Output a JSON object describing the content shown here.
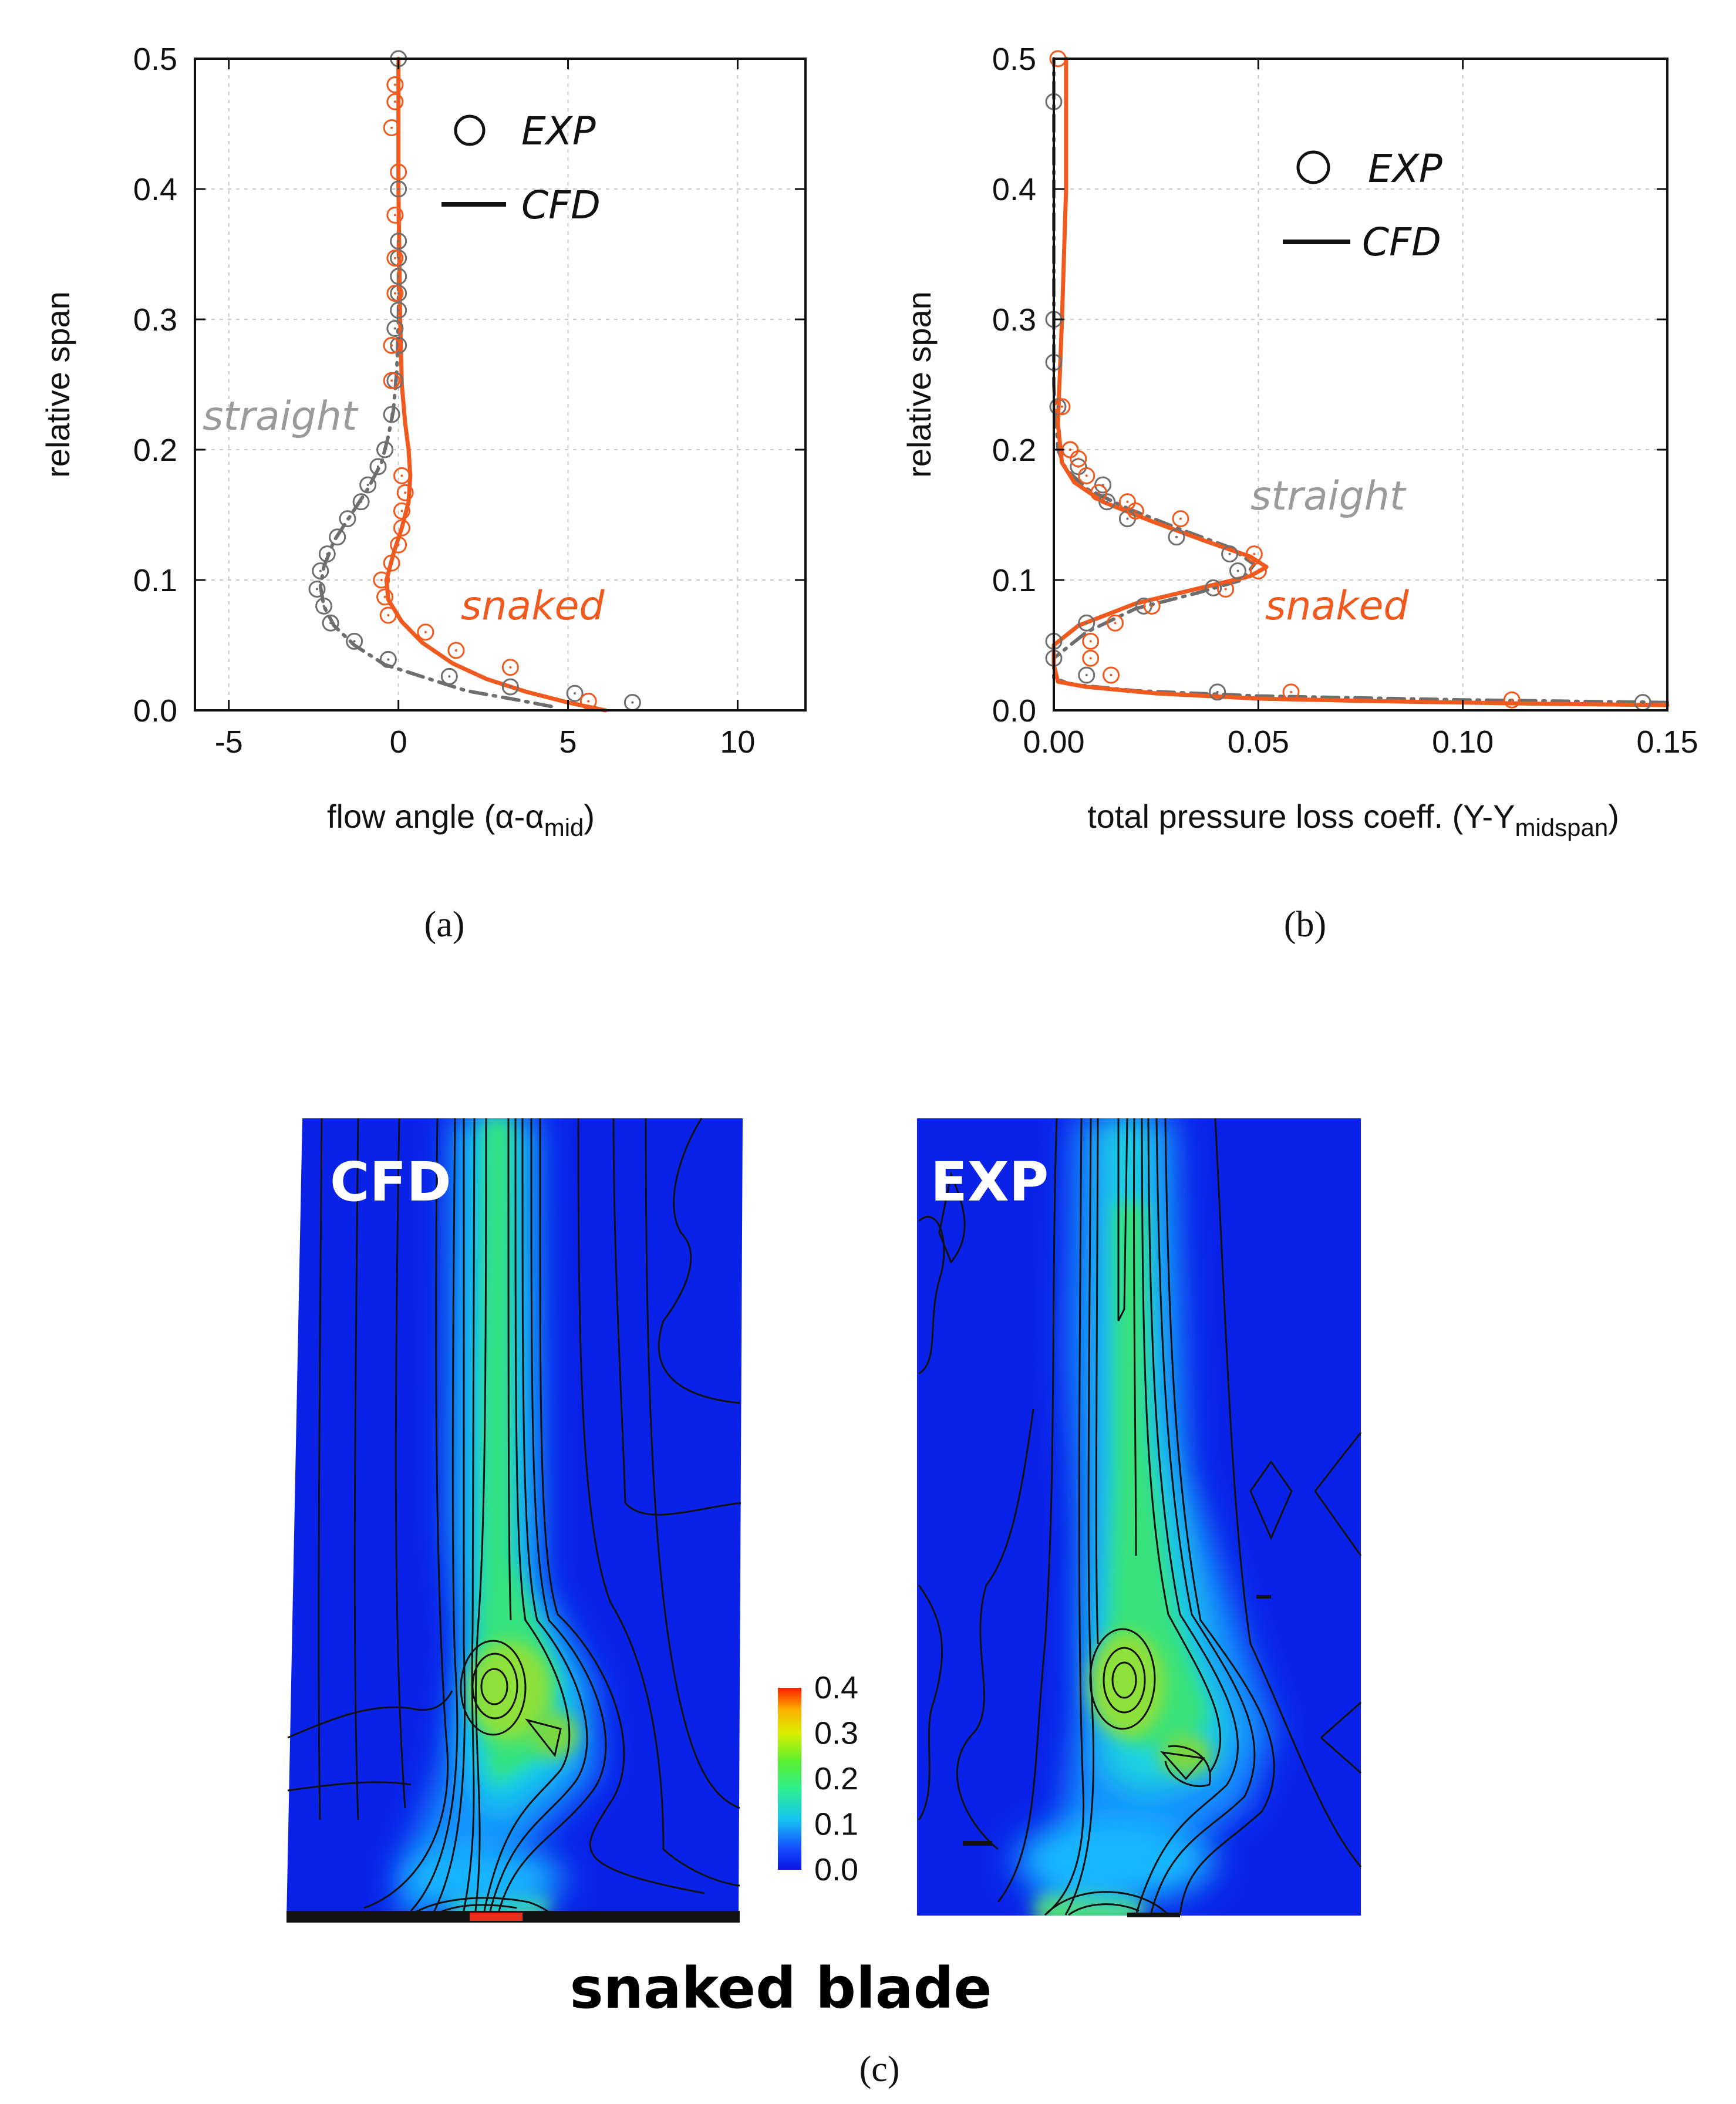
{
  "figure": {
    "panel_a": "(a)",
    "panel_b": "(b)",
    "panel_c": "(c)"
  },
  "colors": {
    "snaked": "#f05a1e",
    "straight": "#6e6e6e",
    "straight_label": "#9a9a9a"
  },
  "chart_data": [
    {
      "id": "a",
      "type": "line",
      "xlabel_main": "flow angle (α-α",
      "xlabel_sub": "mid",
      "xlabel_end": ")",
      "ylabel": "relative span",
      "xlim": [
        -6,
        12
      ],
      "ylim": [
        0,
        0.5
      ],
      "xticks": [
        -5,
        0,
        5,
        10
      ],
      "xtick_labels": [
        "-5",
        "0",
        "5",
        "10"
      ],
      "yticks": [
        0.0,
        0.1,
        0.2,
        0.3,
        0.4,
        0.5
      ],
      "ytick_labels": [
        "0.0",
        "0.1",
        "0.2",
        "0.3",
        "0.4",
        "0.5"
      ],
      "grid": true,
      "legend": {
        "exp": "EXP",
        "cfd": "CFD",
        "placement": "top-right"
      },
      "annotations": {
        "straight": "straight",
        "snaked": "snaked"
      },
      "series": [
        {
          "name": "straight CFD",
          "kind": "line",
          "style": "dashdot",
          "color": "straight",
          "points": [
            [
              4.5,
              0.003
            ],
            [
              3.5,
              0.008
            ],
            [
              2.0,
              0.015
            ],
            [
              0.8,
              0.025
            ],
            [
              -0.4,
              0.035
            ],
            [
              -1.3,
              0.05
            ],
            [
              -1.9,
              0.065
            ],
            [
              -2.2,
              0.08
            ],
            [
              -2.3,
              0.095
            ],
            [
              -2.2,
              0.11
            ],
            [
              -1.9,
              0.13
            ],
            [
              -1.4,
              0.15
            ],
            [
              -0.9,
              0.17
            ],
            [
              -0.5,
              0.19
            ],
            [
              -0.3,
              0.21
            ],
            [
              -0.15,
              0.23
            ],
            [
              -0.05,
              0.26
            ],
            [
              0,
              0.3
            ],
            [
              0,
              0.4
            ],
            [
              0,
              0.5
            ]
          ]
        },
        {
          "name": "snaked CFD",
          "kind": "line",
          "style": "solid",
          "color": "snaked",
          "points": [
            [
              6.1,
              0.0
            ],
            [
              5.0,
              0.006
            ],
            [
              3.8,
              0.014
            ],
            [
              2.6,
              0.024
            ],
            [
              1.6,
              0.036
            ],
            [
              0.7,
              0.052
            ],
            [
              0.1,
              0.068
            ],
            [
              -0.3,
              0.085
            ],
            [
              -0.35,
              0.1
            ],
            [
              -0.15,
              0.12
            ],
            [
              0.1,
              0.14
            ],
            [
              0.3,
              0.16
            ],
            [
              0.35,
              0.18
            ],
            [
              0.3,
              0.2
            ],
            [
              0.2,
              0.22
            ],
            [
              0.1,
              0.25
            ],
            [
              0.05,
              0.3
            ],
            [
              0,
              0.4
            ],
            [
              0,
              0.5
            ]
          ]
        },
        {
          "name": "straight EXP",
          "kind": "markers",
          "color": "straight",
          "points": [
            [
              6.9,
              0.006
            ],
            [
              5.2,
              0.013
            ],
            [
              3.3,
              0.018
            ],
            [
              1.5,
              0.026
            ],
            [
              -0.3,
              0.039
            ],
            [
              -1.3,
              0.053
            ],
            [
              -2.0,
              0.067
            ],
            [
              -2.2,
              0.08
            ],
            [
              -2.4,
              0.093
            ],
            [
              -2.3,
              0.107
            ],
            [
              -2.1,
              0.12
            ],
            [
              -1.8,
              0.133
            ],
            [
              -1.5,
              0.147
            ],
            [
              -1.1,
              0.16
            ],
            [
              -0.9,
              0.173
            ],
            [
              -0.6,
              0.187
            ],
            [
              -0.4,
              0.2
            ],
            [
              -0.2,
              0.227
            ],
            [
              -0.1,
              0.253
            ],
            [
              0.0,
              0.28
            ],
            [
              -0.1,
              0.293
            ],
            [
              0.0,
              0.307
            ],
            [
              0.0,
              0.32
            ],
            [
              0.0,
              0.333
            ],
            [
              0.0,
              0.347
            ],
            [
              0.0,
              0.36
            ],
            [
              0.0,
              0.4
            ],
            [
              0.0,
              0.5
            ]
          ]
        },
        {
          "name": "snaked EXP",
          "kind": "markers",
          "color": "snaked",
          "points": [
            [
              5.6,
              0.007
            ],
            [
              3.3,
              0.033
            ],
            [
              1.7,
              0.046
            ],
            [
              0.8,
              0.06
            ],
            [
              -0.3,
              0.073
            ],
            [
              -0.4,
              0.087
            ],
            [
              -0.5,
              0.1
            ],
            [
              -0.2,
              0.113
            ],
            [
              0.0,
              0.127
            ],
            [
              0.1,
              0.14
            ],
            [
              0.1,
              0.153
            ],
            [
              0.2,
              0.167
            ],
            [
              0.1,
              0.18
            ],
            [
              -0.2,
              0.253
            ],
            [
              -0.2,
              0.28
            ],
            [
              -0.1,
              0.32
            ],
            [
              -0.1,
              0.347
            ],
            [
              -0.1,
              0.38
            ],
            [
              0.0,
              0.413
            ],
            [
              -0.2,
              0.447
            ],
            [
              -0.1,
              0.467
            ],
            [
              -0.1,
              0.48
            ]
          ]
        }
      ]
    },
    {
      "id": "b",
      "type": "line",
      "xlabel_main": "total pressure loss coeff. (Y-Y",
      "xlabel_sub": "midspan",
      "xlabel_end": ")",
      "ylabel": "relative span",
      "xlim": [
        0,
        0.15
      ],
      "ylim": [
        0,
        0.5
      ],
      "xticks": [
        0,
        0.05,
        0.1,
        0.15
      ],
      "xtick_labels": [
        "0.00",
        "0.05",
        "0.10",
        "0.15"
      ],
      "yticks": [
        0.0,
        0.1,
        0.2,
        0.3,
        0.4,
        0.5
      ],
      "ytick_labels": [
        "0.0",
        "0.1",
        "0.2",
        "0.3",
        "0.4",
        "0.5"
      ],
      "grid": true,
      "legend": {
        "exp": "EXP",
        "cfd": "CFD",
        "placement": "top-right"
      },
      "annotations": {
        "straight": "straight",
        "snaked": "snaked"
      },
      "series": [
        {
          "name": "straight CFD",
          "kind": "line",
          "style": "dashdot",
          "color": "straight",
          "points": [
            [
              0.15,
              0.006
            ],
            [
              0.1,
              0.008
            ],
            [
              0.05,
              0.011
            ],
            [
              0.02,
              0.015
            ],
            [
              0.004,
              0.02
            ],
            [
              0.0,
              0.025
            ],
            [
              0.0,
              0.04
            ],
            [
              0.008,
              0.06
            ],
            [
              0.02,
              0.078
            ],
            [
              0.035,
              0.09
            ],
            [
              0.046,
              0.1
            ],
            [
              0.049,
              0.112
            ],
            [
              0.043,
              0.125
            ],
            [
              0.03,
              0.14
            ],
            [
              0.018,
              0.155
            ],
            [
              0.008,
              0.17
            ],
            [
              0.003,
              0.185
            ],
            [
              0.001,
              0.2
            ],
            [
              0.0,
              0.25
            ],
            [
              0.0,
              0.4
            ],
            [
              0.0,
              0.5
            ]
          ]
        },
        {
          "name": "snaked CFD",
          "kind": "line",
          "style": "solid",
          "color": "snaked",
          "points": [
            [
              0.15,
              0.004
            ],
            [
              0.12,
              0.005
            ],
            [
              0.08,
              0.007
            ],
            [
              0.05,
              0.009
            ],
            [
              0.025,
              0.013
            ],
            [
              0.008,
              0.018
            ],
            [
              0.001,
              0.022
            ],
            [
              0.0,
              0.035
            ],
            [
              0.0,
              0.05
            ],
            [
              0.006,
              0.065
            ],
            [
              0.02,
              0.082
            ],
            [
              0.036,
              0.094
            ],
            [
              0.048,
              0.103
            ],
            [
              0.052,
              0.11
            ],
            [
              0.048,
              0.118
            ],
            [
              0.037,
              0.13
            ],
            [
              0.024,
              0.145
            ],
            [
              0.012,
              0.16
            ],
            [
              0.005,
              0.175
            ],
            [
              0.002,
              0.19
            ],
            [
              0.001,
              0.22
            ],
            [
              0.002,
              0.3
            ],
            [
              0.003,
              0.4
            ],
            [
              0.003,
              0.5
            ]
          ]
        },
        {
          "name": "straight EXP",
          "kind": "markers",
          "color": "straight",
          "points": [
            [
              0.144,
              0.006
            ],
            [
              0.04,
              0.014
            ],
            [
              0.008,
              0.027
            ],
            [
              0.0,
              0.04
            ],
            [
              0.0,
              0.053
            ],
            [
              0.008,
              0.067
            ],
            [
              0.022,
              0.08
            ],
            [
              0.039,
              0.094
            ],
            [
              0.045,
              0.107
            ],
            [
              0.043,
              0.12
            ],
            [
              0.03,
              0.133
            ],
            [
              0.018,
              0.147
            ],
            [
              0.013,
              0.16
            ],
            [
              0.012,
              0.173
            ],
            [
              0.006,
              0.187
            ],
            [
              0.004,
              0.2
            ],
            [
              0.001,
              0.233
            ],
            [
              0.0,
              0.267
            ],
            [
              0.0,
              0.3
            ],
            [
              0.0,
              0.467
            ]
          ]
        },
        {
          "name": "snaked EXP",
          "kind": "markers",
          "color": "snaked",
          "points": [
            [
              0.112,
              0.008
            ],
            [
              0.058,
              0.014
            ],
            [
              0.014,
              0.027
            ],
            [
              0.009,
              0.04
            ],
            [
              0.009,
              0.053
            ],
            [
              0.015,
              0.067
            ],
            [
              0.024,
              0.08
            ],
            [
              0.042,
              0.093
            ],
            [
              0.05,
              0.107
            ],
            [
              0.049,
              0.12
            ],
            [
              0.031,
              0.147
            ],
            [
              0.02,
              0.153
            ],
            [
              0.018,
              0.16
            ],
            [
              0.011,
              0.167
            ],
            [
              0.008,
              0.18
            ],
            [
              0.006,
              0.193
            ],
            [
              0.004,
              0.2
            ],
            [
              0.002,
              0.233
            ],
            [
              0.001,
              0.5
            ]
          ]
        }
      ]
    },
    {
      "id": "c",
      "type": "heatmap",
      "label_cfd": "CFD",
      "label_exp": "EXP",
      "caption": "snaked blade",
      "colorbar_ticks": [
        "0.0",
        "0.1",
        "0.2",
        "0.3",
        "0.4"
      ],
      "colorbar_range": [
        0.0,
        0.4
      ]
    }
  ]
}
